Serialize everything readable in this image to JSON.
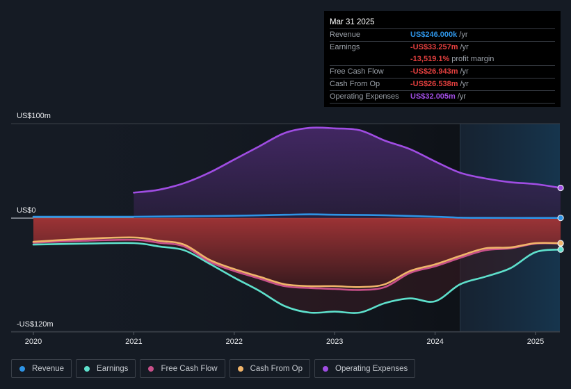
{
  "tooltip": {
    "date": "Mar 31 2025",
    "rows": [
      {
        "label": "Revenue",
        "value": "US$246.000k",
        "suffix": "/yr",
        "color": "#2e94e6"
      },
      {
        "label": "Earnings",
        "value": "-US$33.257m",
        "suffix": "/yr",
        "color": "#e5403f"
      },
      {
        "label": "",
        "value": "-13,519.1%",
        "suffix": "profit margin",
        "color": "#e5403f"
      },
      {
        "label": "Free Cash Flow",
        "value": "-US$26.943m",
        "suffix": "/yr",
        "color": "#e5403f"
      },
      {
        "label": "Cash From Op",
        "value": "-US$26.538m",
        "suffix": "/yr",
        "color": "#e5403f"
      },
      {
        "label": "Operating Expenses",
        "value": "US$32.005m",
        "suffix": "/yr",
        "color": "#a04de3"
      }
    ]
  },
  "legend": [
    {
      "label": "Revenue",
      "color": "#2e94e6"
    },
    {
      "label": "Earnings",
      "color": "#5ee0cc"
    },
    {
      "label": "Free Cash Flow",
      "color": "#c8508a"
    },
    {
      "label": "Cash From Op",
      "color": "#f0b46a"
    },
    {
      "label": "Operating Expenses",
      "color": "#a04de3"
    }
  ],
  "chart_data": {
    "type": "area",
    "title": "",
    "xlabel": "",
    "ylabel": "",
    "y_unit": "US$ m",
    "ylim": [
      -120,
      100
    ],
    "xlim": [
      2020.0,
      2025.25
    ],
    "y_tick_labels": [
      {
        "value": 100,
        "label": "US$100m"
      },
      {
        "value": 0,
        "label": "US$0"
      },
      {
        "value": -120,
        "label": "-US$120m"
      }
    ],
    "x_ticks": [
      2020,
      2021,
      2022,
      2023,
      2024,
      2025
    ],
    "x_tick_labels": [
      "2020",
      "2021",
      "2022",
      "2023",
      "2024",
      "2025"
    ],
    "forecast_shade_start": 2024.25,
    "legend_position": "bottom",
    "series": [
      {
        "name": "Revenue",
        "color": "#2e94e6",
        "x": [
          2020.0,
          2020.5,
          2021.0,
          2021.5,
          2022.0,
          2022.5,
          2022.75,
          2023.0,
          2023.5,
          2024.0,
          2024.25,
          2024.5,
          2025.0,
          2025.25
        ],
        "values": [
          1.5,
          1.5,
          1.5,
          2.0,
          2.5,
          3.5,
          4.0,
          3.5,
          3.0,
          1.5,
          0.5,
          0.3,
          0.25,
          0.246
        ]
      },
      {
        "name": "Earnings",
        "color": "#5ee0cc",
        "x": [
          2020.0,
          2020.5,
          2021.0,
          2021.25,
          2021.5,
          2021.75,
          2022.0,
          2022.25,
          2022.5,
          2022.75,
          2023.0,
          2023.25,
          2023.5,
          2023.75,
          2024.0,
          2024.25,
          2024.5,
          2024.75,
          2025.0,
          2025.25
        ],
        "values": [
          -28,
          -27,
          -26.5,
          -30,
          -34,
          -48,
          -63,
          -77,
          -93,
          -100,
          -99,
          -100,
          -90,
          -85,
          -88,
          -70,
          -62,
          -53,
          -36,
          -33.257
        ]
      },
      {
        "name": "Free Cash Flow",
        "color": "#c8508a",
        "x": [
          2020.0,
          2020.5,
          2021.0,
          2021.25,
          2021.5,
          2021.75,
          2022.0,
          2022.25,
          2022.5,
          2022.75,
          2023.0,
          2023.25,
          2023.5,
          2023.75,
          2024.0,
          2024.25,
          2024.5,
          2024.75,
          2025.0,
          2025.25
        ],
        "values": [
          -26,
          -24,
          -23,
          -26,
          -30,
          -46,
          -56,
          -64,
          -72,
          -74,
          -75,
          -76,
          -73,
          -58,
          -51,
          -42,
          -34,
          -32,
          -27,
          -26.943
        ]
      },
      {
        "name": "Cash From Op",
        "color": "#f0b46a",
        "x": [
          2020.0,
          2020.5,
          2021.0,
          2021.25,
          2021.5,
          2021.75,
          2022.0,
          2022.25,
          2022.5,
          2022.75,
          2023.0,
          2023.25,
          2023.5,
          2023.75,
          2024.0,
          2024.25,
          2024.5,
          2024.75,
          2025.0,
          2025.25
        ],
        "values": [
          -25,
          -22,
          -20.5,
          -24,
          -28,
          -44,
          -54,
          -62,
          -70,
          -72,
          -72,
          -73,
          -70,
          -56,
          -49,
          -40,
          -32,
          -31,
          -26.5,
          -26.538
        ]
      },
      {
        "name": "Operating Expenses",
        "color": "#a04de3",
        "x": [
          2021.0,
          2021.25,
          2021.5,
          2021.75,
          2022.0,
          2022.25,
          2022.5,
          2022.75,
          2023.0,
          2023.25,
          2023.5,
          2023.75,
          2024.0,
          2024.25,
          2024.5,
          2024.75,
          2025.0,
          2025.25
        ],
        "values": [
          27,
          30,
          37,
          48,
          62,
          76,
          90,
          95.5,
          95,
          93,
          82,
          73,
          60,
          48,
          42,
          38,
          36,
          32.005
        ]
      }
    ]
  }
}
